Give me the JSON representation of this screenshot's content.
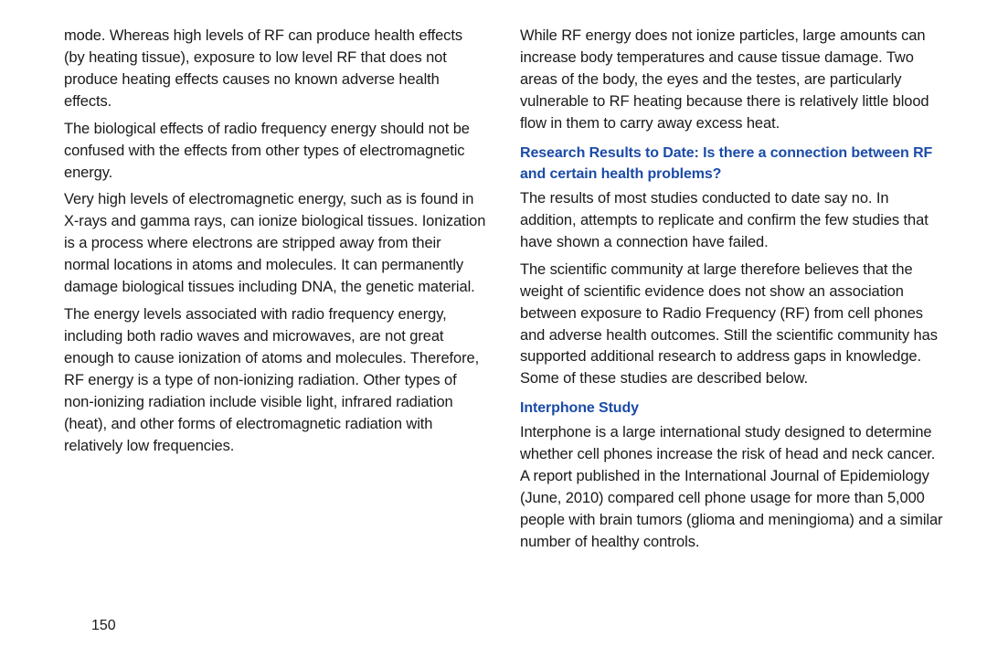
{
  "page_number": "150",
  "text_color": "#1a1a1a",
  "heading_color": "#1a4ba8",
  "background_color": "#ffffff",
  "body_fontsize": 16.5,
  "heading_fontsize": 16,
  "line_height": 1.45,
  "left_column": {
    "paragraphs": [
      "mode. Whereas high levels of RF can produce health effects (by heating tissue), exposure to low level RF that does not produce heating effects causes no known adverse health effects.",
      "The biological effects of radio frequency energy should not be confused with the effects from other types of electromagnetic energy.",
      "Very high levels of electromagnetic energy, such as is found in X-rays and gamma rays, can ionize biological tissues. Ionization is a process where electrons are stripped away from their normal locations in atoms and molecules. It can permanently damage biological tissues including DNA, the genetic material.",
      "The energy levels associated with radio frequency energy, including both radio waves and microwaves, are not great enough to cause ionization of atoms and molecules. Therefore, RF energy is a type of non-ionizing radiation. Other types of non-ionizing radiation include visible light, infrared radiation (heat), and other forms of electromagnetic radiation with relatively low frequencies."
    ]
  },
  "right_column": {
    "blocks": [
      {
        "type": "para",
        "text": "While RF energy does not ionize particles, large amounts can increase body temperatures and cause tissue damage. Two areas of the body, the eyes and the testes, are particularly vulnerable to RF heating because there is relatively little blood flow in them to carry away excess heat."
      },
      {
        "type": "heading",
        "text": "Research Results to Date: Is there a connection between RF and certain health problems?"
      },
      {
        "type": "para",
        "text": "The results of most studies conducted to date say no. In addition, attempts to replicate and confirm the few studies that have shown a connection have failed."
      },
      {
        "type": "para",
        "text": "The scientific community at large therefore believes that the weight of scientific evidence does not show an association between exposure to Radio Frequency (RF) from cell phones and adverse health outcomes. Still the scientific community has supported additional research to address gaps in knowledge. Some of these studies are described below."
      },
      {
        "type": "heading",
        "text": "Interphone Study"
      },
      {
        "type": "para",
        "text": "Interphone is a large international study designed to determine whether cell phones increase the risk of head and neck cancer. A report published in the International Journal of Epidemiology (June, 2010) compared cell phone usage for more than 5,000 people with brain tumors (glioma and meningioma) and a similar number of healthy controls."
      }
    ]
  }
}
